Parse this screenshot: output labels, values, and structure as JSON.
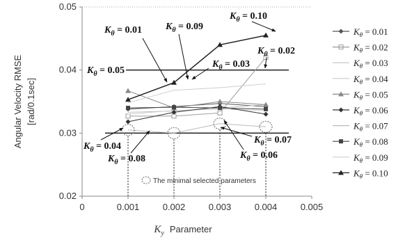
{
  "chart_data": {
    "type": "line",
    "xlabel_symbol": "K",
    "xlabel_sub": "y",
    "xlabel_rest": "Parameter",
    "ylabel": "Angular Velocity RMSE",
    "ylabel_unit": "[rad/0.1sec]",
    "xlim": [
      0,
      0.005
    ],
    "ylim": [
      0.02,
      0.05
    ],
    "x_ticks": [
      "0",
      "0.001",
      "0.002",
      "0.003",
      "0.004",
      "0.005"
    ],
    "y_ticks": [
      "0.02",
      "0.03",
      "0.04",
      "0.05"
    ],
    "x": [
      0.001,
      0.002,
      0.003,
      0.004
    ],
    "series": [
      {
        "name": "Kθ = 0.01",
        "values": [
          0.0338,
          0.0342,
          0.0347,
          0.0342
        ],
        "color": "#555555",
        "marker": "diamond"
      },
      {
        "name": "Kθ = 0.02",
        "values": [
          0.0327,
          0.0327,
          0.0332,
          0.042
        ],
        "color": "#9a9a9a",
        "marker": "square-open"
      },
      {
        "name": "Kθ = 0.03",
        "values": [
          0.0333,
          0.0335,
          0.034,
          0.0345
        ],
        "color": "#c0c0c0",
        "marker": "none"
      },
      {
        "name": "Kθ = 0.04",
        "values": [
          0.033,
          0.0336,
          0.0338,
          0.0336
        ],
        "color": "#cccccc",
        "marker": "none"
      },
      {
        "name": "Kθ = 0.05",
        "values": [
          0.0367,
          0.034,
          0.035,
          0.0345
        ],
        "color": "#888888",
        "marker": "triangle"
      },
      {
        "name": "Kθ = 0.06",
        "values": [
          0.0318,
          0.0333,
          0.0342,
          0.033
        ],
        "color": "#333333",
        "marker": "diamond"
      },
      {
        "name": "Kθ = 0.07",
        "values": [
          0.0305,
          0.03,
          0.0315,
          0.031
        ],
        "color": "#bbbbbb",
        "marker": "none"
      },
      {
        "name": "Kθ = 0.08",
        "values": [
          0.034,
          0.0341,
          0.034,
          0.0338
        ],
        "color": "#444444",
        "marker": "square"
      },
      {
        "name": "Kθ = 0.09",
        "values": [
          0.0348,
          0.0368,
          0.0372,
          0.0378
        ],
        "color": "#cfcfcf",
        "marker": "none"
      },
      {
        "name": "Kθ = 0.10",
        "values": [
          0.0353,
          0.038,
          0.044,
          0.0455
        ],
        "color": "#222222",
        "marker": "triangle"
      }
    ],
    "reference_lines": [
      0.03,
      0.04
    ],
    "grid": {
      "y_dotted_top": true
    },
    "highlighted_points": [
      {
        "x": 0.001,
        "y": 0.0305
      },
      {
        "x": 0.002,
        "y": 0.03
      },
      {
        "x": 0.003,
        "y": 0.0315
      },
      {
        "x": 0.004,
        "y": 0.031
      }
    ],
    "note": "The minimal selected parameters",
    "annotations": [
      {
        "text": "Kθ = 0.10"
      },
      {
        "text": "Kθ = 0.01"
      },
      {
        "text": "Kθ = 0.09"
      },
      {
        "text": "Kθ = 0.02"
      },
      {
        "text": "Kθ = 0.05"
      },
      {
        "text": "Kθ = 0.03"
      },
      {
        "text": "Kθ = 0.04"
      },
      {
        "text": "Kθ = 0.07"
      },
      {
        "text": "Kθ = 0.08"
      },
      {
        "text": "Kθ = 0.06"
      }
    ],
    "legend_position": "right"
  }
}
